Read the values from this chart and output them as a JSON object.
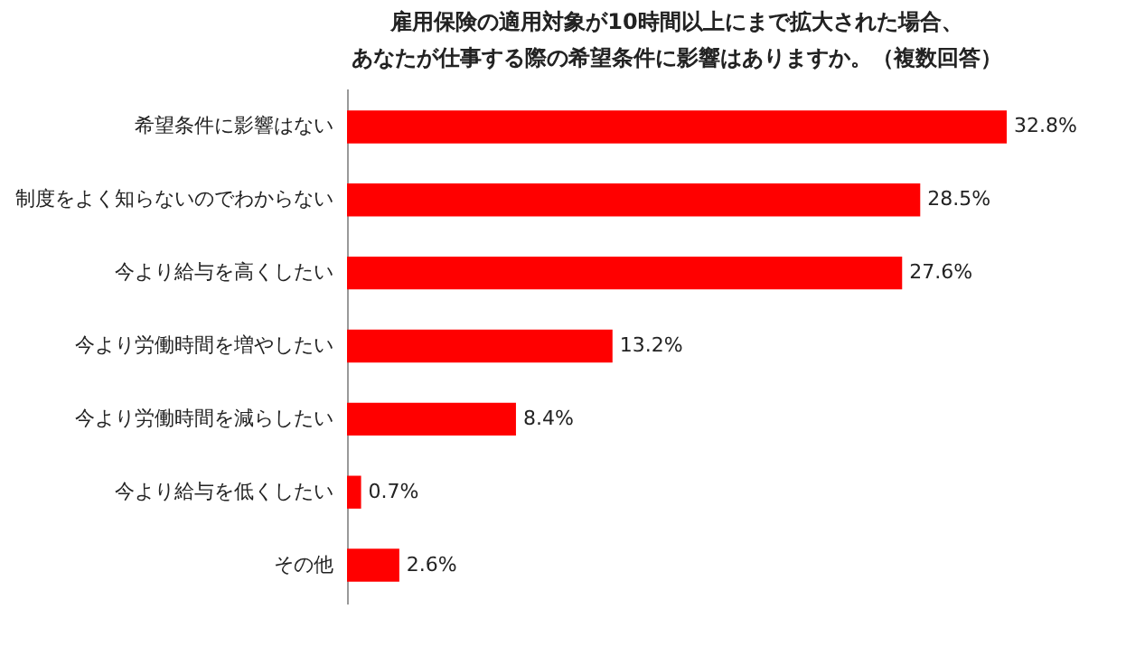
{
  "chart_data": {
    "type": "bar",
    "orientation": "horizontal",
    "title": "雇用保険の適用対象が10時間以上にまで拡大された場合、",
    "subtitle": "あなたが仕事する際の希望条件に影響はありますか。（複数回答）",
    "categories": [
      "希望条件に影響はない",
      "制度をよく知らないのでわからない",
      "今より給与を高くしたい",
      "今より労働時間を増やしたい",
      "今より労働時間を減らしたい",
      "今より給与を低くしたい",
      "その他"
    ],
    "values": [
      32.8,
      28.5,
      27.6,
      13.2,
      8.4,
      0.7,
      2.6
    ],
    "value_labels": [
      "32.8%",
      "28.5%",
      "27.6%",
      "13.2%",
      "8.4%",
      "0.7%",
      "2.6%"
    ],
    "color": "#ff0000",
    "grid": false
  }
}
